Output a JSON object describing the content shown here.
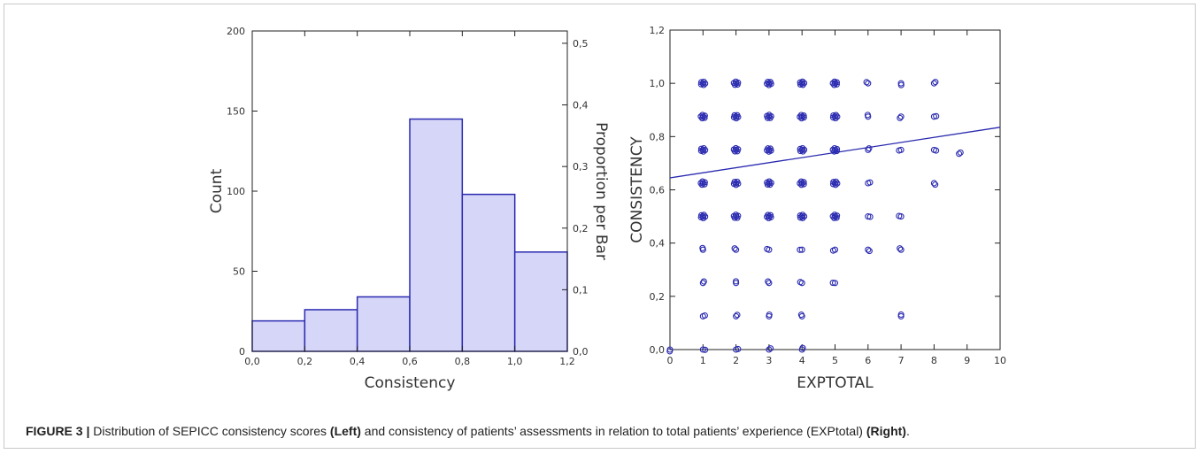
{
  "figure": {
    "caption_label": "FIGURE 3 |",
    "caption_text_1": " Distribution of SEPICC consistency scores ",
    "caption_bold_1": "(Left)",
    "caption_text_2": " and consistency of patients’ assessments in relation to total patients’ experience (EXPtotal) ",
    "caption_bold_2": "(Right)",
    "caption_text_3": "."
  },
  "chart_data": [
    {
      "type": "bar",
      "subtype": "histogram",
      "bins": [
        [
          0.0,
          0.2
        ],
        [
          0.2,
          0.4
        ],
        [
          0.4,
          0.6
        ],
        [
          0.6,
          0.8
        ],
        [
          0.8,
          1.0
        ],
        [
          1.0,
          1.2
        ]
      ],
      "values": [
        19,
        26,
        34,
        145,
        98,
        62
      ],
      "xlabel": "Consistency",
      "ylabel": "Count",
      "ylabel_right": "Proportion per Bar",
      "xlim": [
        0,
        1.2
      ],
      "ylim": [
        0,
        200
      ],
      "ylim_right": [
        0,
        0.52
      ],
      "x_ticks": [
        "0,0",
        "0,2",
        "0,4",
        "0,6",
        "0,8",
        "1,0",
        "1,2"
      ],
      "y_ticks": [
        "0",
        "50",
        "100",
        "150",
        "200"
      ],
      "y_ticks_values": [
        0,
        50,
        100,
        150,
        200
      ],
      "y_right_ticks": [
        "0,0",
        "0,1",
        "0,2",
        "0,3",
        "0,4",
        "0,5"
      ],
      "y_right_ticks_values": [
        0,
        0.1,
        0.2,
        0.3,
        0.4,
        0.5
      ],
      "bar_fill": "#d6d6f8",
      "bar_stroke": "#2a2ab0",
      "grid": false
    },
    {
      "type": "scatter",
      "xlabel": "EXPTOTAL",
      "ylabel": "CONSISTENCY",
      "xlim": [
        0,
        10
      ],
      "ylim": [
        0,
        1.2
      ],
      "x_ticks": [
        "0",
        "1",
        "2",
        "3",
        "4",
        "5",
        "6",
        "7",
        "8",
        "9",
        "10"
      ],
      "x_ticks_values": [
        0,
        1,
        2,
        3,
        4,
        5,
        6,
        7,
        8,
        9,
        10
      ],
      "y_ticks": [
        "0,0",
        "0,2",
        "0,4",
        "0,6",
        "0,8",
        "1,0",
        "1,2"
      ],
      "y_ticks_values": [
        0,
        0.2,
        0.4,
        0.6,
        0.8,
        1.0,
        1.2
      ],
      "point_color": "#2a2ab0",
      "grid": false,
      "regression_line": {
        "x": [
          0,
          10
        ],
        "y": [
          0.645,
          0.835
        ]
      },
      "points": [
        [
          1,
          1.0
        ],
        [
          1,
          0.875
        ],
        [
          1,
          0.75
        ],
        [
          1,
          0.625
        ],
        [
          1,
          0.5
        ],
        [
          1,
          0.375
        ],
        [
          1,
          0.25
        ],
        [
          1,
          0.125
        ],
        [
          1,
          0.0
        ],
        [
          2,
          1.0
        ],
        [
          2,
          0.875
        ],
        [
          2,
          0.75
        ],
        [
          2,
          0.625
        ],
        [
          2,
          0.5
        ],
        [
          2,
          0.375
        ],
        [
          2,
          0.25
        ],
        [
          2,
          0.125
        ],
        [
          2,
          0.0
        ],
        [
          3,
          1.0
        ],
        [
          3,
          0.875
        ],
        [
          3,
          0.75
        ],
        [
          3,
          0.625
        ],
        [
          3,
          0.5
        ],
        [
          3,
          0.375
        ],
        [
          3,
          0.25
        ],
        [
          3,
          0.125
        ],
        [
          3,
          0.0
        ],
        [
          4,
          1.0
        ],
        [
          4,
          0.875
        ],
        [
          4,
          0.75
        ],
        [
          4,
          0.625
        ],
        [
          4,
          0.5
        ],
        [
          4,
          0.375
        ],
        [
          4,
          0.25
        ],
        [
          4,
          0.125
        ],
        [
          4,
          0.0
        ],
        [
          5,
          1.0
        ],
        [
          5,
          0.875
        ],
        [
          5,
          0.75
        ],
        [
          5,
          0.625
        ],
        [
          5,
          0.5
        ],
        [
          5,
          0.375
        ],
        [
          5,
          0.25
        ],
        [
          6,
          1.0
        ],
        [
          6,
          0.875
        ],
        [
          6,
          0.75
        ],
        [
          6,
          0.625
        ],
        [
          6,
          0.5
        ],
        [
          6,
          0.375
        ],
        [
          7,
          1.0
        ],
        [
          7,
          0.875
        ],
        [
          7,
          0.75
        ],
        [
          7,
          0.5
        ],
        [
          7,
          0.375
        ],
        [
          7,
          0.125
        ],
        [
          8,
          1.0
        ],
        [
          8,
          0.875
        ],
        [
          8,
          0.75
        ],
        [
          8,
          0.625
        ],
        [
          0,
          0.0
        ],
        [
          8.8,
          0.74
        ]
      ]
    }
  ]
}
